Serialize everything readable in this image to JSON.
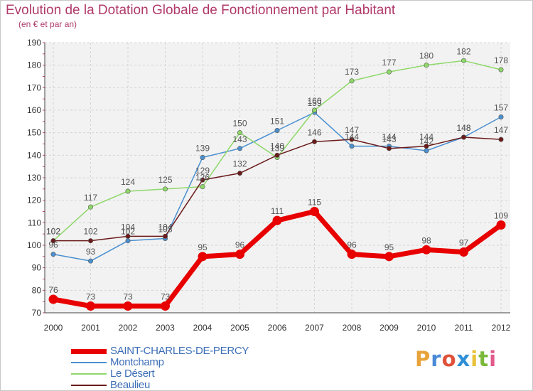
{
  "title": "Evolution de la Dotation Globale de Fonctionnement par Habitant",
  "subtitle": "(en € et par an)",
  "logo_text": "Proxiti",
  "logo_colors": [
    "#e8a33a",
    "#4a8ad6",
    "#e0513a",
    "#2f8fd8",
    "#e8c23a",
    "#7ab83a",
    "#e05a8a"
  ],
  "chart_data": {
    "type": "line",
    "categories": [
      "2000",
      "2001",
      "2002",
      "2003",
      "2004",
      "2005",
      "2006",
      "2007",
      "2008",
      "2009",
      "2010",
      "2011",
      "2012"
    ],
    "ylim": [
      70,
      190
    ],
    "yticks": [
      70,
      80,
      90,
      100,
      110,
      120,
      130,
      140,
      150,
      160,
      170,
      180,
      190
    ],
    "grid": true,
    "legend": "bottom-left",
    "series": [
      {
        "name": "SAINT-CHARLES-DE-PERCY",
        "color": "#e80000",
        "highlight": true,
        "values": [
          76,
          73,
          73,
          73,
          95,
          96,
          111,
          115,
          96,
          95,
          98,
          97,
          109
        ]
      },
      {
        "name": "Montchamp",
        "color": "#4a90d0",
        "values": [
          96,
          93,
          102,
          103,
          139,
          143,
          151,
          159,
          144,
          144,
          142,
          148,
          157
        ]
      },
      {
        "name": "Le Désert",
        "color": "#8fd86a",
        "values": [
          102,
          117,
          124,
          125,
          126,
          150,
          139,
          160,
          173,
          177,
          180,
          182,
          178
        ]
      },
      {
        "name": "Beaulieu",
        "color": "#6b1a1a",
        "values": [
          102,
          102,
          104,
          104,
          129,
          132,
          140,
          146,
          147,
          143,
          144,
          148,
          147
        ]
      }
    ]
  }
}
